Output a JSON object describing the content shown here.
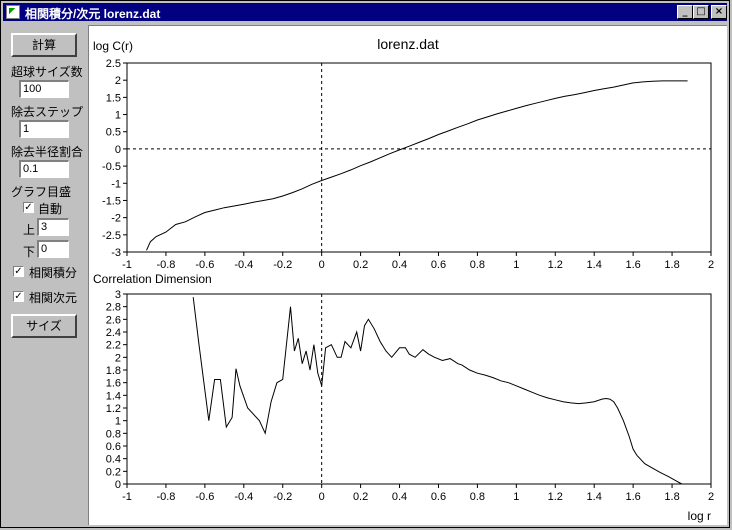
{
  "window": {
    "title": "相関積分/次元 lorenz.dat",
    "minimize": "_",
    "maximize": "□",
    "close": "×"
  },
  "sidebar": {
    "calc_button": "計算",
    "hypersphere_label": "超球サイズ数",
    "hypersphere_value": "100",
    "step_label": "除去ステップ",
    "step_value": "1",
    "radius_label": "除去半径割合",
    "radius_value": "0.1",
    "graph_scale_label": "グラフ目盛",
    "auto_label": "自動",
    "auto_checked": true,
    "upper_label": "上",
    "upper_value": "3",
    "lower_label": "下",
    "lower_value": "0",
    "corr_integral_label": "相関積分",
    "corr_integral_checked": true,
    "corr_dim_label": "相関次元",
    "corr_dim_checked": true,
    "size_button": "サイズ",
    "check_mark": "✓"
  },
  "chart_data": [
    {
      "type": "line",
      "title": "lorenz.dat",
      "ylabel": "log C(r)",
      "xlabel": "",
      "xlim": [
        -1,
        2
      ],
      "ylim": [
        -3,
        2.5
      ],
      "xticks": [
        "-1",
        "-0.8",
        "-0.6",
        "-0.4",
        "-0.2",
        "0",
        "0.2",
        "0.4",
        "0.6",
        "0.8",
        "1",
        "1.2",
        "1.4",
        "1.6",
        "1.8",
        "2"
      ],
      "yticks": [
        "2.5",
        "2",
        "1.5",
        "1",
        "0.5",
        "0",
        "-0.5",
        "-1",
        "-1.5",
        "-2",
        "-2.5",
        "-3"
      ],
      "xtick_values": [
        -1,
        -0.8,
        -0.6,
        -0.4,
        -0.2,
        0,
        0.2,
        0.4,
        0.6,
        0.8,
        1,
        1.2,
        1.4,
        1.6,
        1.8,
        2
      ],
      "ytick_values": [
        2.5,
        2,
        1.5,
        1,
        0.5,
        0,
        -0.5,
        -1,
        -1.5,
        -2,
        -2.5,
        -3
      ],
      "reference_lines": {
        "x": 0,
        "y": 0,
        "style": "dashed"
      },
      "x": [
        -0.9,
        -0.88,
        -0.85,
        -0.8,
        -0.75,
        -0.7,
        -0.65,
        -0.6,
        -0.55,
        -0.5,
        -0.45,
        -0.4,
        -0.35,
        -0.3,
        -0.25,
        -0.2,
        -0.15,
        -0.1,
        -0.05,
        0,
        0.05,
        0.1,
        0.15,
        0.2,
        0.25,
        0.3,
        0.35,
        0.4,
        0.45,
        0.5,
        0.55,
        0.6,
        0.65,
        0.7,
        0.75,
        0.8,
        0.85,
        0.9,
        0.95,
        1,
        1.05,
        1.1,
        1.15,
        1.2,
        1.25,
        1.3,
        1.35,
        1.4,
        1.45,
        1.5,
        1.55,
        1.6,
        1.65,
        1.7,
        1.75,
        1.8,
        1.85,
        1.88
      ],
      "y": [
        -2.95,
        -2.7,
        -2.55,
        -2.42,
        -2.2,
        -2.12,
        -1.98,
        -1.85,
        -1.78,
        -1.71,
        -1.66,
        -1.61,
        -1.55,
        -1.5,
        -1.45,
        -1.37,
        -1.27,
        -1.16,
        -1.03,
        -0.92,
        -0.82,
        -0.72,
        -0.61,
        -0.49,
        -0.38,
        -0.26,
        -0.14,
        -0.03,
        0.08,
        0.19,
        0.3,
        0.42,
        0.52,
        0.63,
        0.73,
        0.84,
        0.93,
        1.02,
        1.1,
        1.18,
        1.26,
        1.33,
        1.4,
        1.47,
        1.53,
        1.58,
        1.64,
        1.7,
        1.75,
        1.8,
        1.86,
        1.92,
        1.95,
        1.97,
        1.98,
        1.98,
        1.98,
        1.98
      ]
    },
    {
      "type": "line",
      "title": "Correlation Dimension",
      "xlabel": "log r",
      "ylabel": "",
      "xlim": [
        -1,
        2
      ],
      "ylim": [
        0,
        3
      ],
      "xticks": [
        "-1",
        "-0.8",
        "-0.6",
        "-0.4",
        "-0.2",
        "0",
        "0.2",
        "0.4",
        "0.6",
        "0.8",
        "1",
        "1.2",
        "1.4",
        "1.6",
        "1.8",
        "2"
      ],
      "yticks": [
        "3",
        "2.8",
        "2.6",
        "2.4",
        "2.2",
        "2",
        "1.8",
        "1.6",
        "1.4",
        "1.2",
        "1",
        "0.8",
        "0.6",
        "0.4",
        "0.2",
        "0"
      ],
      "xtick_values": [
        -1,
        -0.8,
        -0.6,
        -0.4,
        -0.2,
        0,
        0.2,
        0.4,
        0.6,
        0.8,
        1,
        1.2,
        1.4,
        1.6,
        1.8,
        2
      ],
      "ytick_values": [
        3,
        2.8,
        2.6,
        2.4,
        2.2,
        2,
        1.8,
        1.6,
        1.4,
        1.2,
        1,
        0.8,
        0.6,
        0.4,
        0.2,
        0
      ],
      "reference_lines": {
        "x": 0,
        "style": "dashed"
      },
      "x": [
        -0.66,
        -0.63,
        -0.58,
        -0.55,
        -0.52,
        -0.49,
        -0.46,
        -0.44,
        -0.42,
        -0.38,
        -0.32,
        -0.29,
        -0.26,
        -0.23,
        -0.2,
        -0.16,
        -0.14,
        -0.12,
        -0.1,
        -0.08,
        -0.06,
        -0.04,
        -0.02,
        0,
        0.02,
        0.05,
        0.08,
        0.1,
        0.12,
        0.15,
        0.18,
        0.2,
        0.22,
        0.24,
        0.27,
        0.3,
        0.33,
        0.36,
        0.4,
        0.43,
        0.45,
        0.48,
        0.52,
        0.55,
        0.58,
        0.62,
        0.66,
        0.7,
        0.72,
        0.76,
        0.8,
        0.84,
        0.88,
        0.92,
        0.96,
        1,
        1.04,
        1.08,
        1.12,
        1.16,
        1.2,
        1.24,
        1.28,
        1.32,
        1.36,
        1.4,
        1.44,
        1.46,
        1.48,
        1.5,
        1.52,
        1.55,
        1.58,
        1.6,
        1.62,
        1.66,
        1.7,
        1.74,
        1.78,
        1.82,
        1.85
      ],
      "y": [
        2.95,
        2.2,
        1.0,
        1.65,
        1.65,
        0.9,
        1.05,
        1.82,
        1.55,
        1.2,
        1.0,
        0.8,
        1.3,
        1.6,
        1.65,
        2.8,
        2.1,
        2.3,
        1.9,
        2.1,
        1.8,
        2.2,
        1.75,
        1.55,
        2.15,
        2.2,
        2.0,
        2.0,
        2.25,
        2.15,
        2.4,
        2.1,
        2.5,
        2.6,
        2.45,
        2.25,
        2.1,
        2.0,
        2.15,
        2.15,
        2.05,
        2.0,
        2.12,
        2.05,
        2.0,
        1.95,
        1.98,
        1.9,
        1.88,
        1.8,
        1.75,
        1.72,
        1.68,
        1.63,
        1.6,
        1.55,
        1.5,
        1.45,
        1.4,
        1.36,
        1.33,
        1.3,
        1.28,
        1.27,
        1.28,
        1.3,
        1.34,
        1.35,
        1.34,
        1.3,
        1.2,
        1.0,
        0.75,
        0.55,
        0.45,
        0.32,
        0.25,
        0.18,
        0.12,
        0.05,
        0.0
      ]
    }
  ]
}
